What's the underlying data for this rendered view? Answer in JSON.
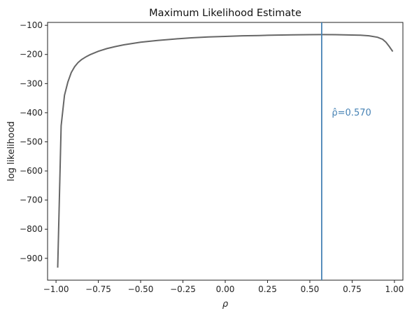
{
  "chart_data": {
    "type": "line",
    "title": "Maximum Likelihood Estimate",
    "xlabel": "ρ",
    "ylabel": "log likelihood",
    "xlim": [
      -1.05,
      1.05
    ],
    "ylim": [
      -975,
      -90
    ],
    "xticks": [
      -1.0,
      -0.75,
      -0.5,
      -0.25,
      0.0,
      0.25,
      0.5,
      0.75,
      1.0
    ],
    "xtick_labels": [
      "−1.00",
      "−0.75",
      "−0.50",
      "−0.25",
      "0.00",
      "0.25",
      "0.50",
      "0.75",
      "1.00"
    ],
    "yticks": [
      -900,
      -800,
      -700,
      -600,
      -500,
      -400,
      -300,
      -200,
      -100
    ],
    "ytick_labels": [
      "−900",
      "−800",
      "−700",
      "−600",
      "−500",
      "−400",
      "−300",
      "−200",
      "−100"
    ],
    "grid": false,
    "series": [
      {
        "name": "log likelihood",
        "color": "#666666",
        "x": [
          -0.99,
          -0.97,
          -0.95,
          -0.93,
          -0.91,
          -0.89,
          -0.87,
          -0.85,
          -0.82,
          -0.8,
          -0.75,
          -0.7,
          -0.65,
          -0.6,
          -0.5,
          -0.4,
          -0.3,
          -0.2,
          -0.1,
          0.0,
          0.1,
          0.2,
          0.3,
          0.4,
          0.5,
          0.57,
          0.65,
          0.7,
          0.8,
          0.85,
          0.9,
          0.93,
          0.95,
          0.97,
          0.99
        ],
        "y": [
          -932,
          -445,
          -340,
          -295,
          -262,
          -242,
          -228,
          -218,
          -207,
          -201,
          -189,
          -180,
          -173,
          -167,
          -158,
          -152,
          -147,
          -143,
          -140,
          -138,
          -136,
          -135,
          -133.5,
          -132.5,
          -132,
          -131.8,
          -132,
          -132.5,
          -134,
          -136,
          -141,
          -148,
          -158,
          -173,
          -190
        ]
      }
    ],
    "vline": {
      "x": 0.57,
      "color": "#4682b4",
      "label": "ρ̂=0.570",
      "label_x": 0.63,
      "label_y": -400
    }
  }
}
